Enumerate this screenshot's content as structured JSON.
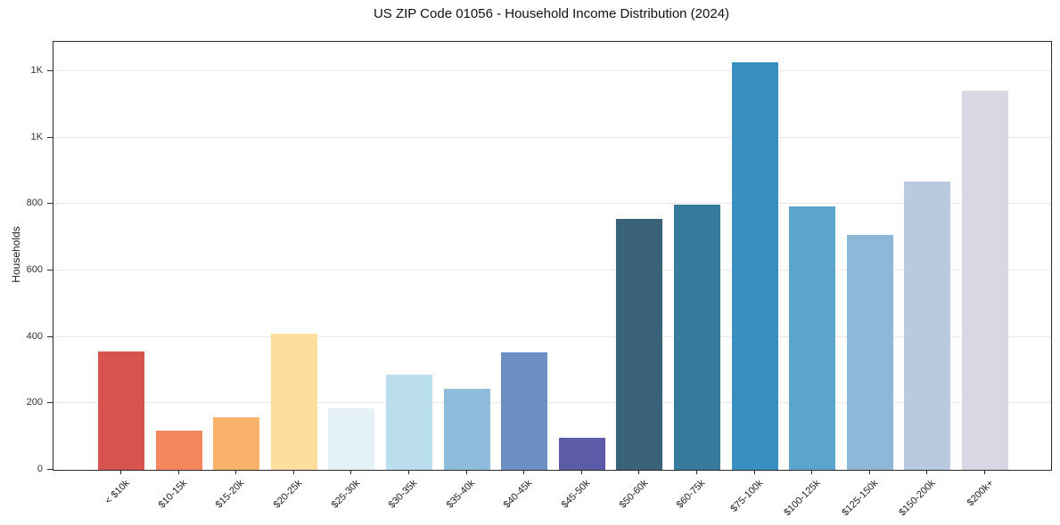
{
  "chart_data": {
    "type": "bar",
    "title": "US ZIP Code 01056 - Household Income Distribution (2024)",
    "xlabel": "",
    "ylabel": "Households",
    "categories": [
      "< $10k",
      "$10-15k",
      "$15-20k",
      "$20-25k",
      "$25-30k",
      "$30-35k",
      "$35-40k",
      "$40-45k",
      "$45-50k",
      "$50-60k",
      "$60-75k",
      "$75-100k",
      "$100-125k",
      "$125-150k",
      "$150-200k",
      "$200k+"
    ],
    "values": [
      355,
      118,
      158,
      410,
      185,
      287,
      243,
      353,
      97,
      755,
      798,
      1227,
      792,
      707,
      868,
      1142
    ],
    "bar_colors": [
      "#d6534f",
      "#f4875e",
      "#f9b269",
      "#fcdf9d",
      "#e4f1f6",
      "#bbdeed",
      "#8fbcda",
      "#6d90c4",
      "#5b5ba8",
      "#3a6278",
      "#367a9e",
      "#388fc2",
      "#5ba4cb",
      "#8fb8d8",
      "#b8c9e0",
      "#d7d8e4"
    ],
    "ylim": [
      0,
      1288
    ],
    "yticks": [
      {
        "value": 0,
        "label": "0"
      },
      {
        "value": 200,
        "label": "200"
      },
      {
        "value": 400,
        "label": "400"
      },
      {
        "value": 600,
        "label": "600"
      },
      {
        "value": 800,
        "label": "800"
      },
      {
        "value": 1000,
        "label": "1K"
      },
      {
        "value": 1200,
        "label": "1K"
      }
    ],
    "grid": {
      "horizontal": true,
      "vertical": false,
      "color": "#e8e8ee"
    },
    "legend_position": "none",
    "colors": {
      "spine": "#2a2a2a",
      "tick": "#2a2a2a",
      "tick_label": "#333333",
      "title": "#111111",
      "background": "#ffffff"
    }
  }
}
